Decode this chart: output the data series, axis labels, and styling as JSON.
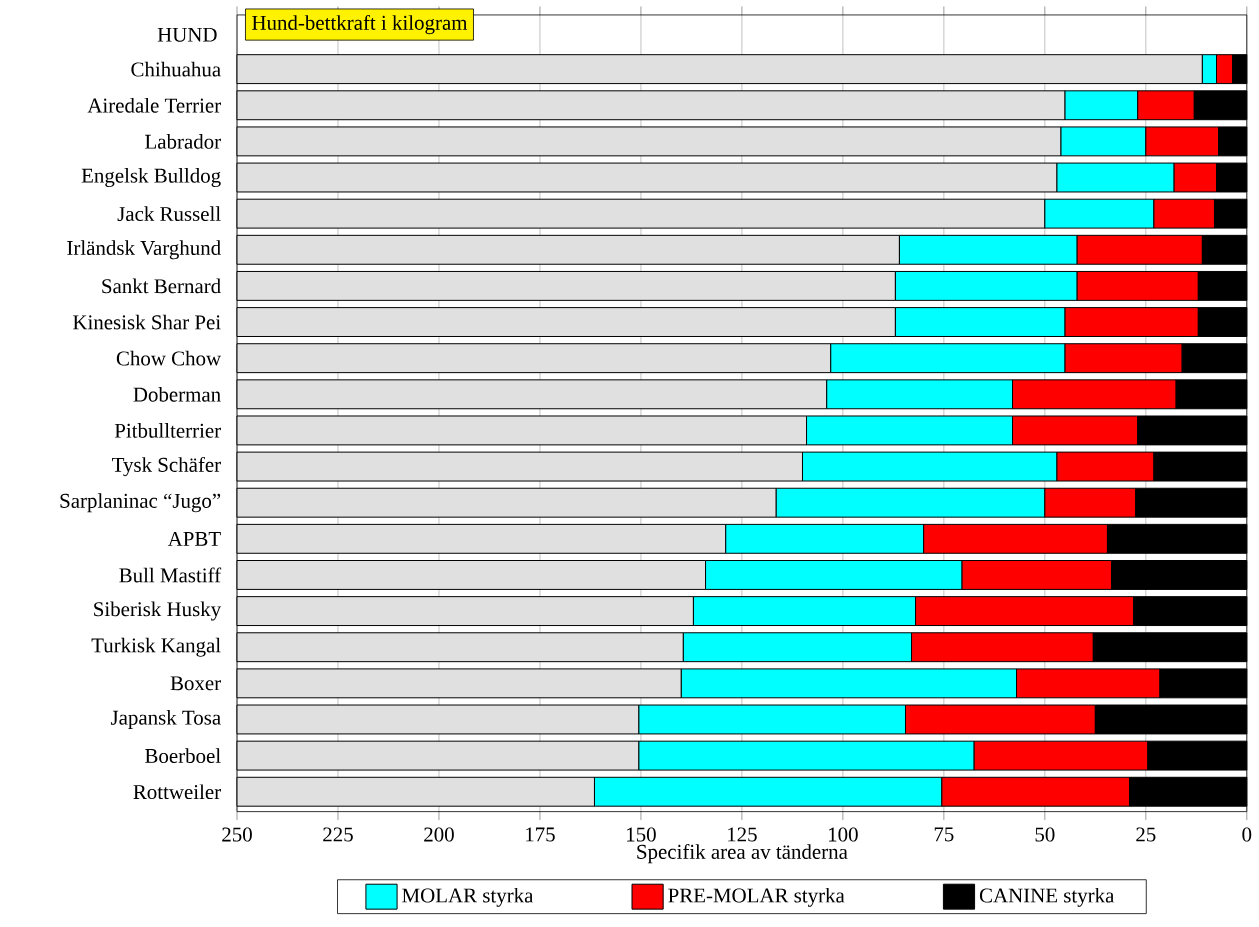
{
  "chart_data": {
    "type": "bar",
    "orientation": "horizontal",
    "stacked": true,
    "title": "Hund-bettkraft i kilogram",
    "ylabel": "HUND",
    "xlabel": "Specifik area av tänderna",
    "categories": [
      "Chihuahua",
      "Airedale Terrier",
      "Labrador",
      "Engelsk Bulldog",
      "Jack Russell",
      "Irländsk Varghund",
      "Sankt Bernard",
      "Kinesisk Shar Pei",
      "Chow Chow",
      "Doberman",
      "Pitbullterrier",
      "Tysk Schäfer",
      "Sarplaninac “Jugo”",
      "APBT",
      "Bull Mastiff",
      "Siberisk Husky",
      "Turkisk Kangal",
      "Boxer",
      "Japansk Tosa",
      "Boerboel",
      "Rottweiler"
    ],
    "series": [
      {
        "name": "CANINE styrka",
        "color": "#000000",
        "values": [
          3.5,
          13,
          7,
          7.5,
          8,
          11,
          12,
          12,
          16,
          17.5,
          27,
          23,
          27.5,
          34.5,
          33.5,
          28,
          38,
          21.5,
          37.5,
          24.5,
          29
        ]
      },
      {
        "name": "PRE-MOLAR styrka",
        "color": "#ff0000",
        "values": [
          4,
          14,
          18,
          10.5,
          15,
          31,
          30,
          33,
          29,
          40.5,
          31,
          24,
          22.5,
          45.5,
          37,
          54,
          45,
          35.5,
          47,
          43,
          46.5
        ]
      },
      {
        "name": "MOLAR styrka",
        "color": "#00ffff",
        "values": [
          3.5,
          18,
          21,
          29,
          27,
          44,
          45,
          42,
          58,
          46,
          51,
          63,
          66.5,
          49,
          63.5,
          55,
          56.5,
          83,
          66,
          83,
          86
        ]
      },
      {
        "color": "#e0e0e0",
        "values": [
          239,
          205,
          204,
          203,
          200,
          164,
          163,
          163,
          147,
          146,
          141,
          140,
          133.5,
          121,
          116,
          113,
          110.5,
          110,
          99.5,
          99.5,
          88.5
        ]
      }
    ],
    "xlim": [
      250,
      0
    ],
    "xticks": [
      250,
      225,
      200,
      175,
      150,
      125,
      100,
      75,
      50,
      25,
      0
    ],
    "grid": "x",
    "legend": "bottom"
  }
}
